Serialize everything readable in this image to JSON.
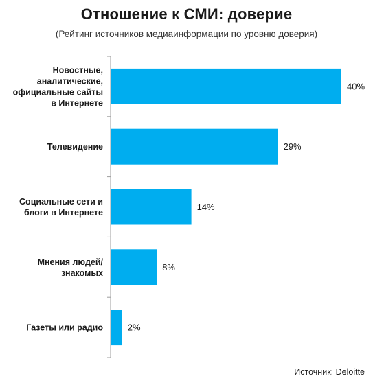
{
  "chart_data": {
    "type": "bar",
    "orientation": "horizontal",
    "title": "Отношение к СМИ: доверие",
    "subtitle": "(Рейтинг источников медиаинформации по уровню доверия)",
    "categories": [
      [
        "Новостные,",
        "аналитические,",
        "официальные сайты",
        "в Интернете"
      ],
      [
        "Телевидение"
      ],
      [
        "Социальные сети и",
        "блоги в Интернете"
      ],
      [
        "Мнения людей/",
        "знакомых"
      ],
      [
        "Газеты или радио"
      ]
    ],
    "values": [
      40,
      29,
      14,
      8,
      2
    ],
    "value_labels": [
      "40%",
      "29%",
      "14%",
      "8%",
      "2%"
    ],
    "unit": "%",
    "xlim": [
      0,
      40
    ],
    "bar_color": "#00adef",
    "axis_color": "#9e9e9e",
    "grid": false,
    "legend": "none"
  },
  "source": "Источник: Deloitte"
}
